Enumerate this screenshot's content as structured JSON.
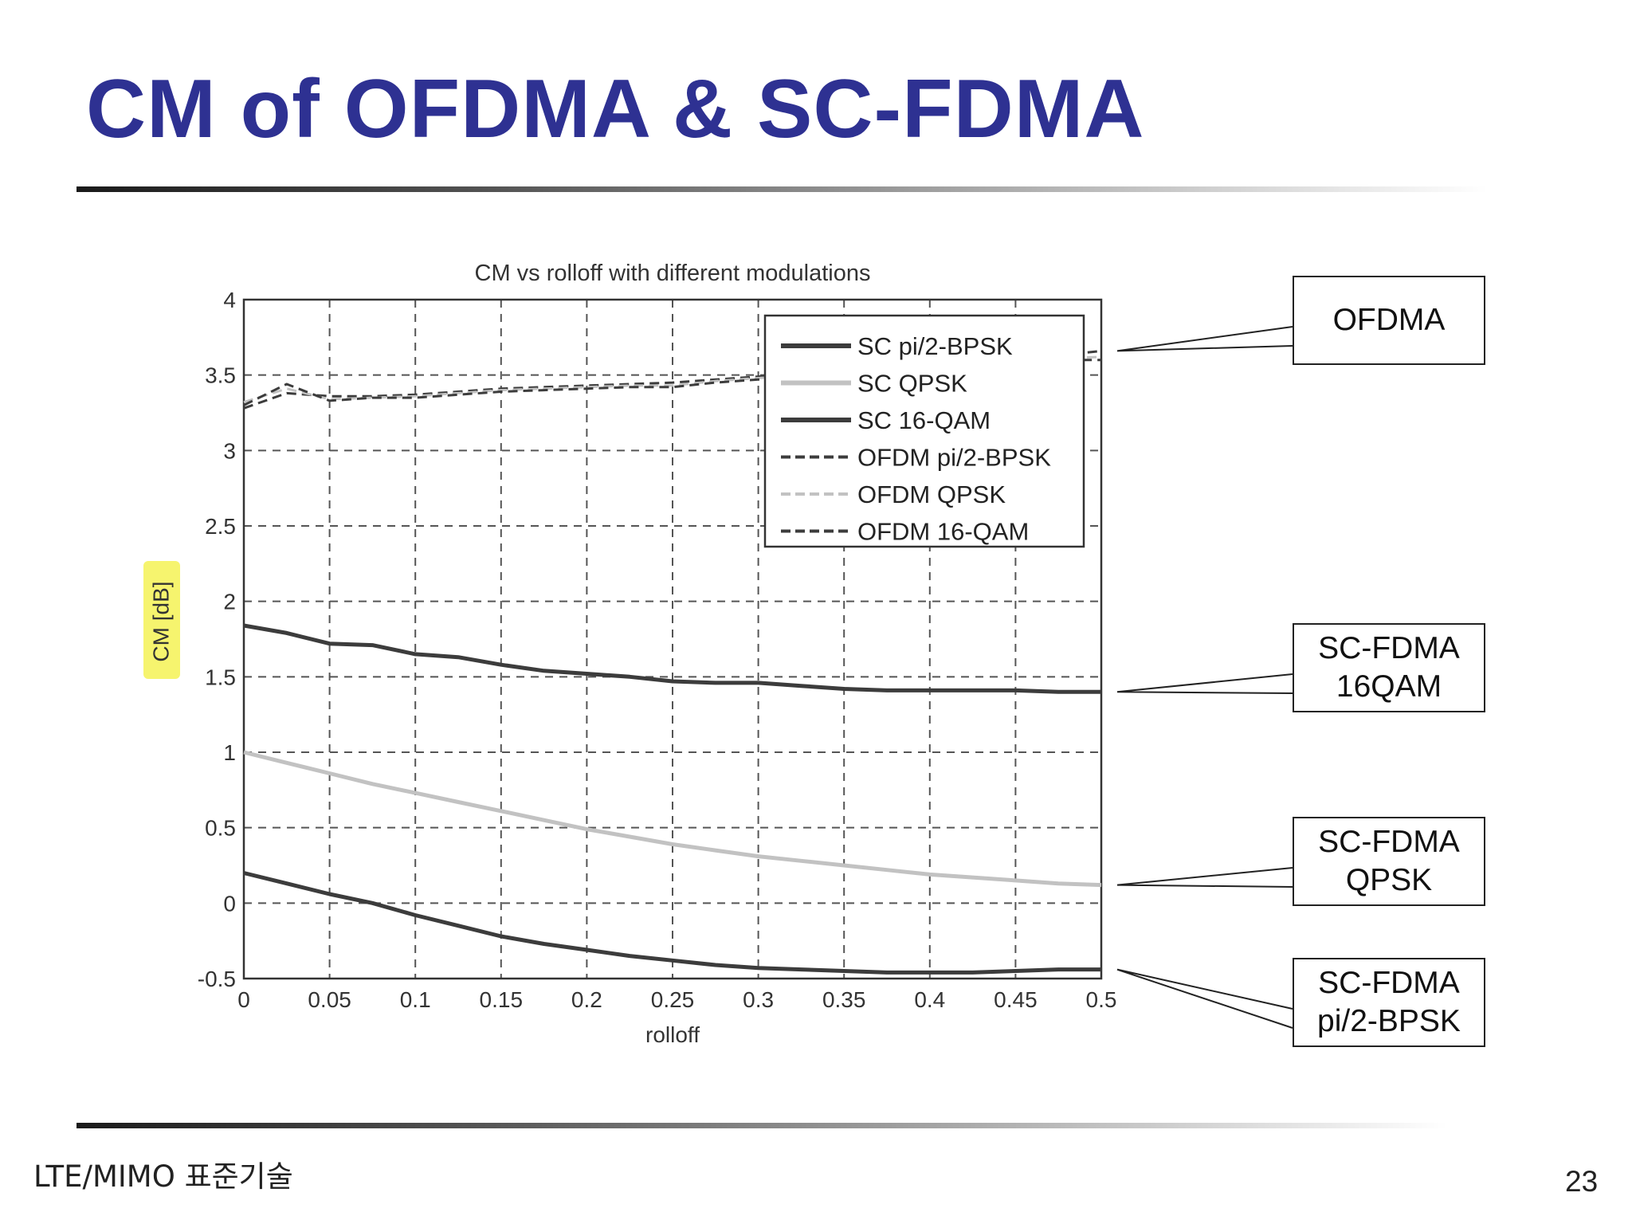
{
  "slide": {
    "title": "CM of OFDMA & SC-FDMA",
    "footer": "LTE/MIMO 표준기술",
    "page_number": "23"
  },
  "callouts": [
    {
      "text": "OFDMA",
      "series": "OFDM"
    },
    {
      "text": "SC-FDMA\n16QAM",
      "series": "SC 16-QAM"
    },
    {
      "text": "SC-FDMA\nQPSK",
      "series": "SC QPSK"
    },
    {
      "text": "SC-FDMA\npi/2-BPSK",
      "series": "SC pi/2-BPSK"
    }
  ],
  "colors": {
    "title": "#2e3192",
    "highlight": "#f6f46e",
    "dark_series": "#3c3c3c",
    "light_series": "#c2c2c2"
  },
  "chart_data": {
    "type": "line",
    "title": "CM vs rolloff with different modulations",
    "xlabel": "rolloff",
    "ylabel": "CM [dB]",
    "xlim": [
      0,
      0.5
    ],
    "ylim": [
      -0.5,
      4
    ],
    "xticks": [
      "0",
      "0.05",
      "0.1",
      "0.15",
      "0.2",
      "0.25",
      "0.3",
      "0.35",
      "0.4",
      "0.45",
      "0.5"
    ],
    "yticks": [
      "4",
      "3.5",
      "3",
      "2.5",
      "2",
      "1.5",
      "1",
      "0.5",
      "0",
      "-0.5"
    ],
    "grid": true,
    "legend_position": "top-right",
    "x": [
      0,
      0.025,
      0.05,
      0.075,
      0.1,
      0.125,
      0.15,
      0.175,
      0.2,
      0.225,
      0.25,
      0.275,
      0.3,
      0.325,
      0.35,
      0.375,
      0.4,
      0.425,
      0.45,
      0.475,
      0.5
    ],
    "series": [
      {
        "name": "SC pi/2-BPSK",
        "style": "solid",
        "color": "#3c3c3c",
        "values": [
          0.2,
          0.13,
          0.06,
          0.0,
          -0.08,
          -0.15,
          -0.22,
          -0.27,
          -0.31,
          -0.35,
          -0.38,
          -0.41,
          -0.43,
          -0.44,
          -0.45,
          -0.46,
          -0.46,
          -0.46,
          -0.45,
          -0.44,
          -0.44
        ]
      },
      {
        "name": "SC QPSK",
        "style": "solid",
        "color": "#c2c2c2",
        "values": [
          1.0,
          0.93,
          0.86,
          0.79,
          0.73,
          0.67,
          0.61,
          0.55,
          0.49,
          0.44,
          0.39,
          0.35,
          0.31,
          0.28,
          0.25,
          0.22,
          0.19,
          0.17,
          0.15,
          0.13,
          0.12
        ]
      },
      {
        "name": "SC 16-QAM",
        "style": "solid",
        "color": "#3c3c3c",
        "values": [
          1.84,
          1.79,
          1.72,
          1.71,
          1.65,
          1.63,
          1.58,
          1.54,
          1.52,
          1.5,
          1.47,
          1.46,
          1.46,
          1.44,
          1.42,
          1.41,
          1.41,
          1.41,
          1.41,
          1.4,
          1.4
        ]
      },
      {
        "name": "OFDM pi/2-BPSK",
        "style": "dashed",
        "color": "#3c3c3c",
        "values": [
          3.28,
          3.38,
          3.36,
          3.36,
          3.37,
          3.39,
          3.41,
          3.42,
          3.43,
          3.44,
          3.45,
          3.47,
          3.49,
          3.51,
          3.53,
          3.55,
          3.57,
          3.59,
          3.61,
          3.63,
          3.66
        ]
      },
      {
        "name": "OFDM QPSK",
        "style": "dashed",
        "color": "#c2c2c2",
        "values": [
          3.32,
          3.41,
          3.34,
          3.35,
          3.36,
          3.38,
          3.4,
          3.41,
          3.42,
          3.43,
          3.43,
          3.46,
          3.48,
          3.5,
          3.52,
          3.54,
          3.56,
          3.58,
          3.6,
          3.61,
          3.62
        ]
      },
      {
        "name": "OFDM 16-QAM",
        "style": "dashed",
        "color": "#3c3c3c",
        "values": [
          3.3,
          3.44,
          3.33,
          3.35,
          3.35,
          3.37,
          3.39,
          3.4,
          3.41,
          3.42,
          3.42,
          3.45,
          3.47,
          3.49,
          3.51,
          3.53,
          3.55,
          3.57,
          3.59,
          3.6,
          3.6
        ]
      }
    ]
  }
}
